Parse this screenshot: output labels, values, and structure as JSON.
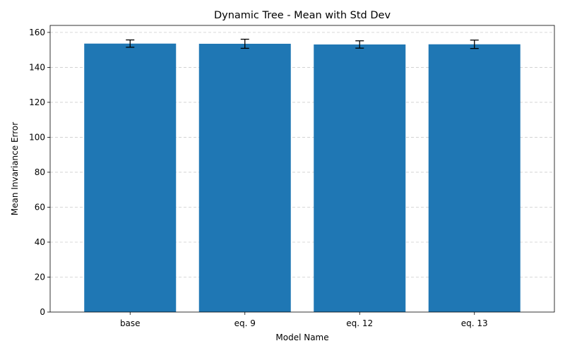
{
  "chart_data": {
    "type": "bar",
    "title": "Dynamic Tree - Mean with Std Dev",
    "xlabel": "Model Name",
    "ylabel": "Mean Invariance Error",
    "categories": [
      "base",
      "eq. 9",
      "eq. 12",
      "eq. 13"
    ],
    "values": [
      153.6,
      153.5,
      153.1,
      153.2
    ],
    "errors": [
      2.1,
      2.6,
      2.1,
      2.4
    ],
    "ylim": [
      0,
      164
    ],
    "yticks": [
      0,
      20,
      40,
      60,
      80,
      100,
      120,
      140,
      160
    ],
    "grid": "y-dashed",
    "legend": "none",
    "colors": {
      "bar": "#1f77b4",
      "error": "#000000",
      "grid": "#cccccc"
    }
  }
}
